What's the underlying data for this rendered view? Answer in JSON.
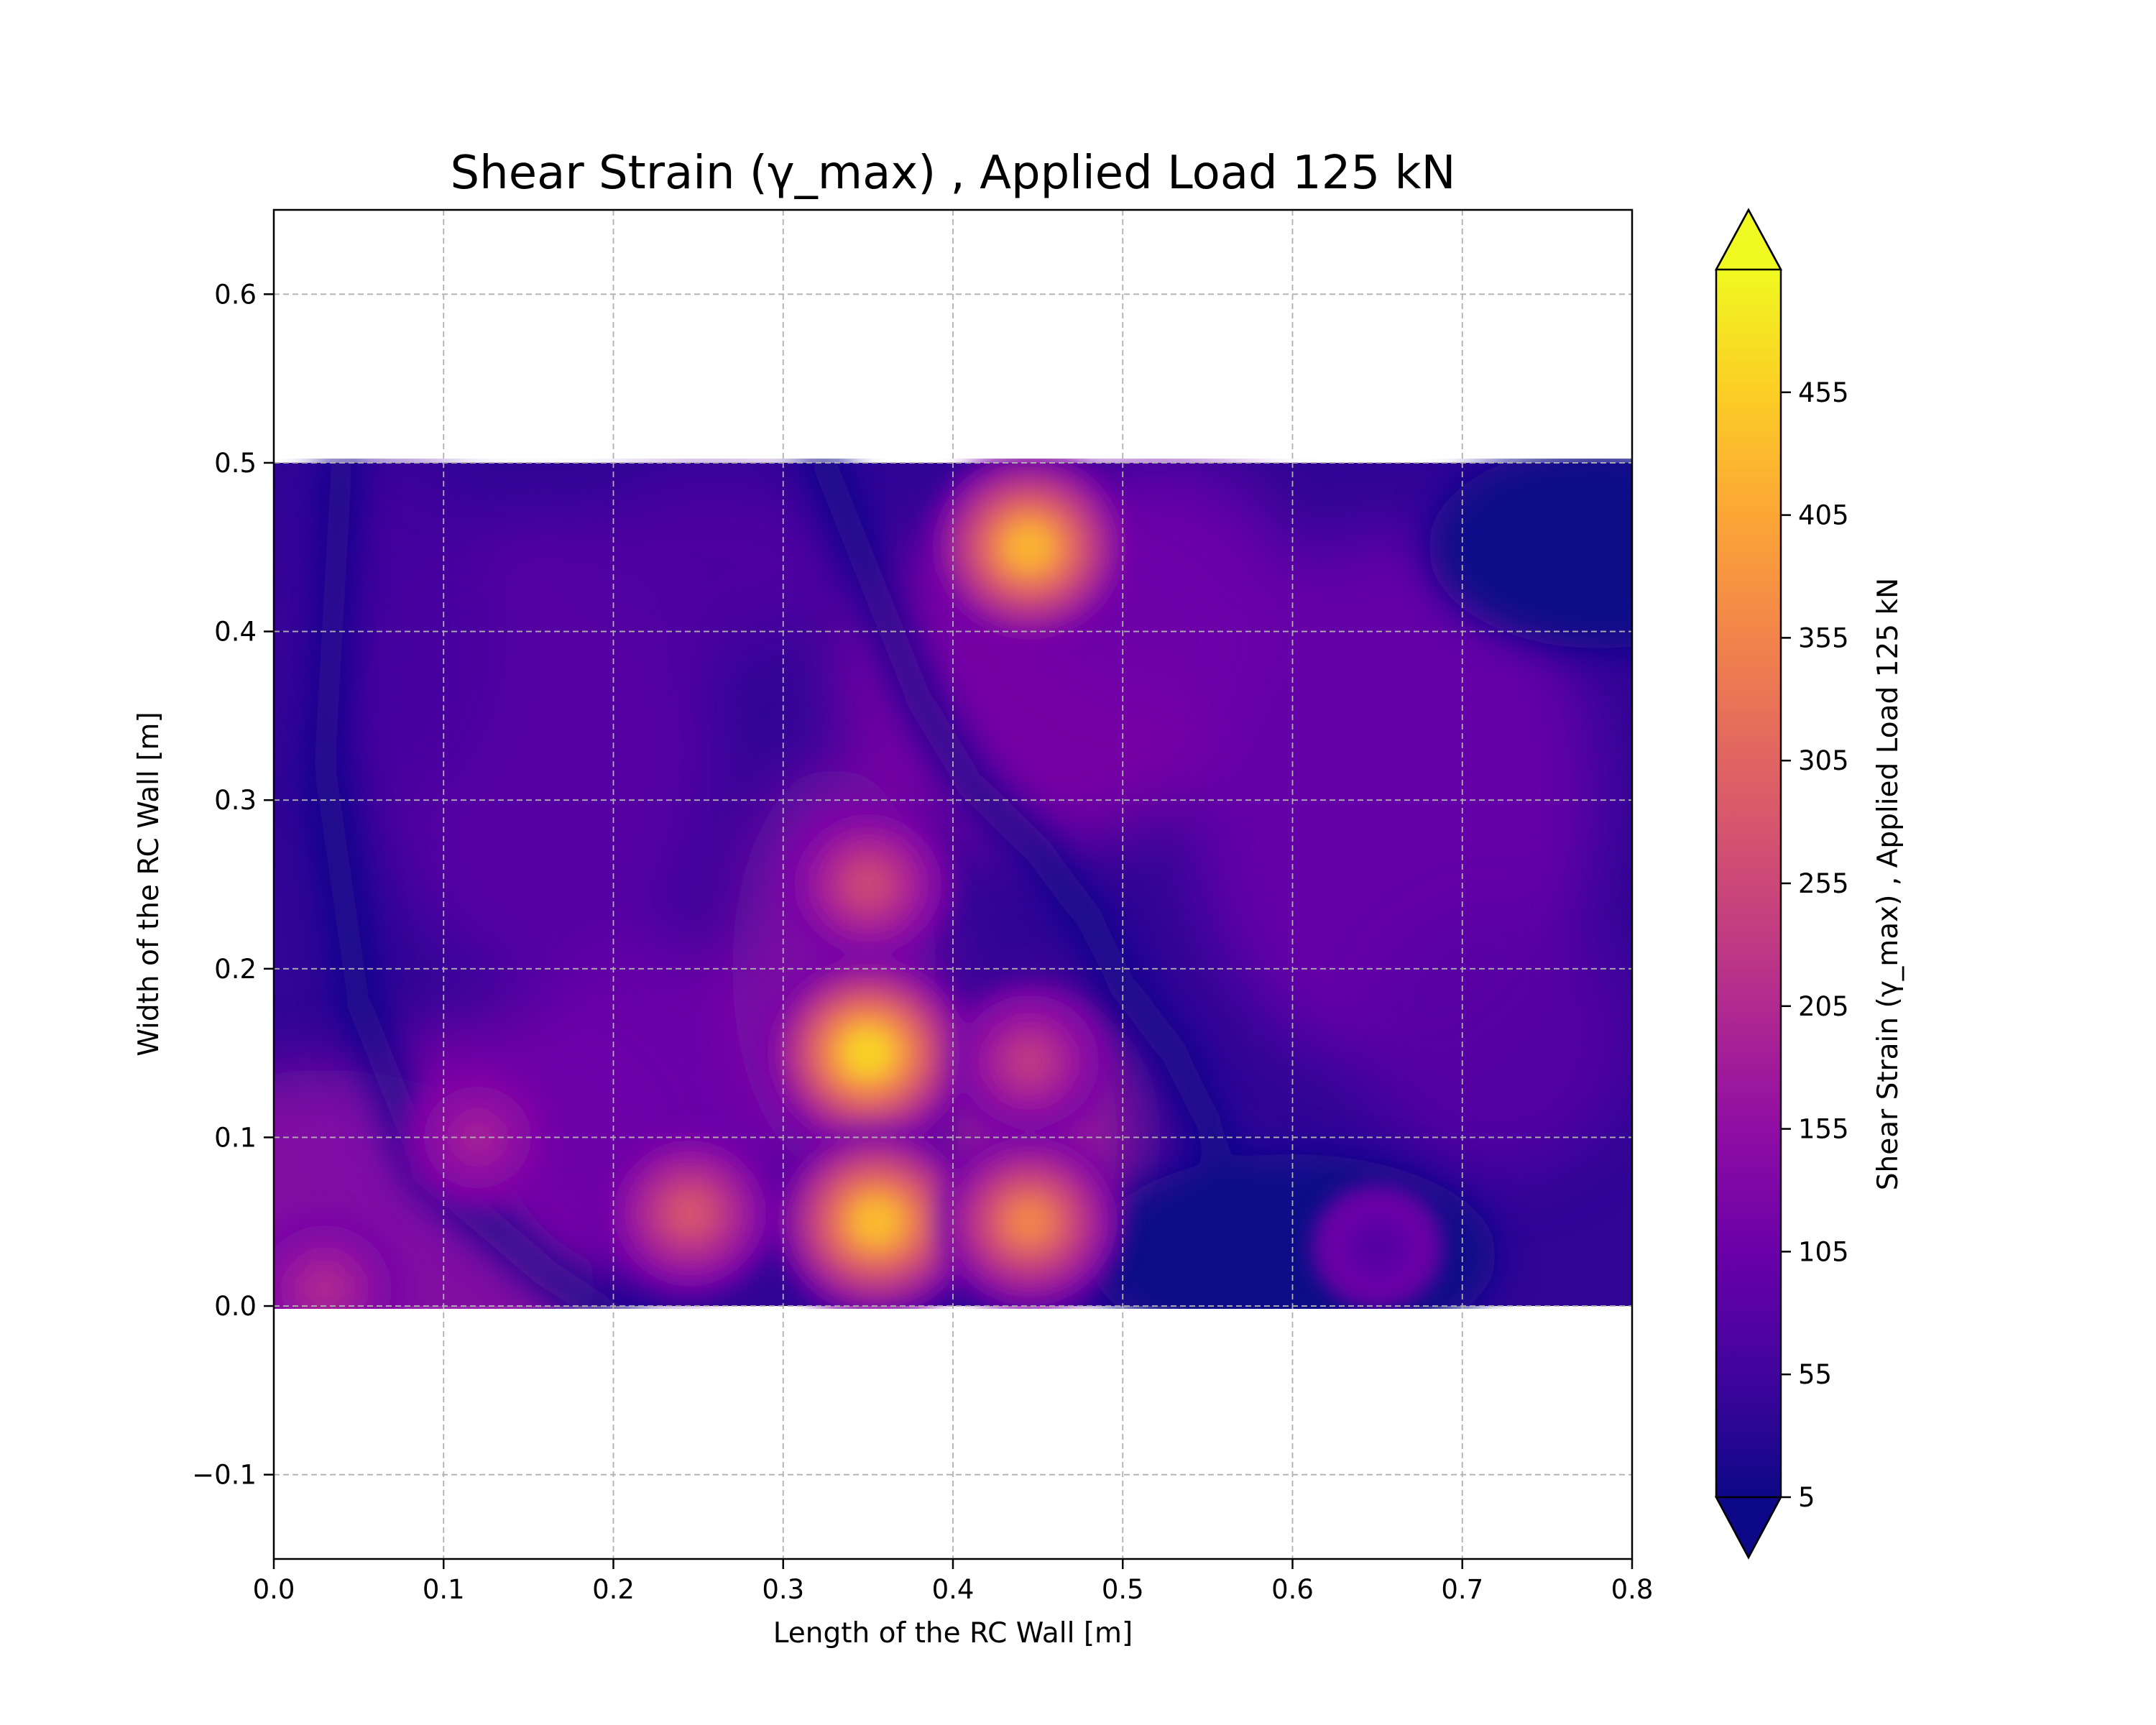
{
  "chart_data": {
    "type": "heatmap",
    "title": "Shear Strain (γ_max) , Applied Load 125 kN",
    "xlabel": "Length of the RC Wall [m]",
    "ylabel": "Width of the RC Wall [m]",
    "xlim": [
      0.0,
      0.8
    ],
    "ylim": [
      -0.15,
      0.65
    ],
    "xticks": [
      "0.0",
      "0.1",
      "0.2",
      "0.3",
      "0.4",
      "0.5",
      "0.6",
      "0.7",
      "0.8"
    ],
    "yticks": [
      "−0.1",
      "0.0",
      "0.1",
      "0.2",
      "0.3",
      "0.4",
      "0.5",
      "0.6"
    ],
    "grid": true,
    "colormap": "plasma",
    "data_extent": {
      "x": [
        0.0,
        0.8
      ],
      "y": [
        0.0,
        0.5
      ]
    },
    "colorbar": {
      "label": "Shear Strain (γ_max) , Applied Load 125 kN",
      "range": [
        5,
        505
      ],
      "extend": "both",
      "ticks": [
        "5",
        "55",
        "105",
        "155",
        "205",
        "255",
        "305",
        "355",
        "405",
        "455"
      ]
    },
    "hotspots": [
      {
        "x": 0.445,
        "y": 0.45,
        "value": 430
      },
      {
        "x": 0.35,
        "y": 0.15,
        "value": 470
      },
      {
        "x": 0.355,
        "y": 0.05,
        "value": 440
      },
      {
        "x": 0.445,
        "y": 0.05,
        "value": 360
      },
      {
        "x": 0.245,
        "y": 0.055,
        "value": 280
      },
      {
        "x": 0.35,
        "y": 0.25,
        "value": 260
      },
      {
        "x": 0.445,
        "y": 0.145,
        "value": 230
      },
      {
        "x": 0.12,
        "y": 0.1,
        "value": 185
      },
      {
        "x": 0.03,
        "y": 0.01,
        "value": 200
      },
      {
        "x": 0.65,
        "y": 0.035,
        "value": 75
      }
    ],
    "low_strain_band": "curved diagonal band from (0.05, 0.15) through (0.16, 0.02) and from (0.34, 0.46) through (0.45, 0.28) to (0.56, 0.1)"
  }
}
